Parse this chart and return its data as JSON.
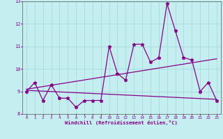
{
  "xlabel": "Windchill (Refroidissement éolien,°C)",
  "ylabel": "",
  "xlim": [
    -0.5,
    23.5
  ],
  "ylim": [
    8,
    13
  ],
  "yticks": [
    8,
    9,
    10,
    11,
    12,
    13
  ],
  "xticks": [
    0,
    1,
    2,
    3,
    4,
    5,
    6,
    7,
    8,
    9,
    10,
    11,
    12,
    13,
    14,
    15,
    16,
    17,
    18,
    19,
    20,
    21,
    22,
    23
  ],
  "background_color": "#c5eef0",
  "grid_color": "#aadde0",
  "line_color": "#880088",
  "line1": [
    9.0,
    9.4,
    8.6,
    9.3,
    8.7,
    8.7,
    8.3,
    8.6,
    8.6,
    8.6,
    11.0,
    9.8,
    9.5,
    11.1,
    11.1,
    10.3,
    10.5,
    12.9,
    11.7,
    10.5,
    10.4,
    9.0,
    9.4,
    8.6
  ],
  "line2_x": [
    0,
    23
  ],
  "line2_y": [
    9.1,
    10.45
  ],
  "line3_x": [
    0,
    23
  ],
  "line3_y": [
    9.05,
    8.65
  ]
}
